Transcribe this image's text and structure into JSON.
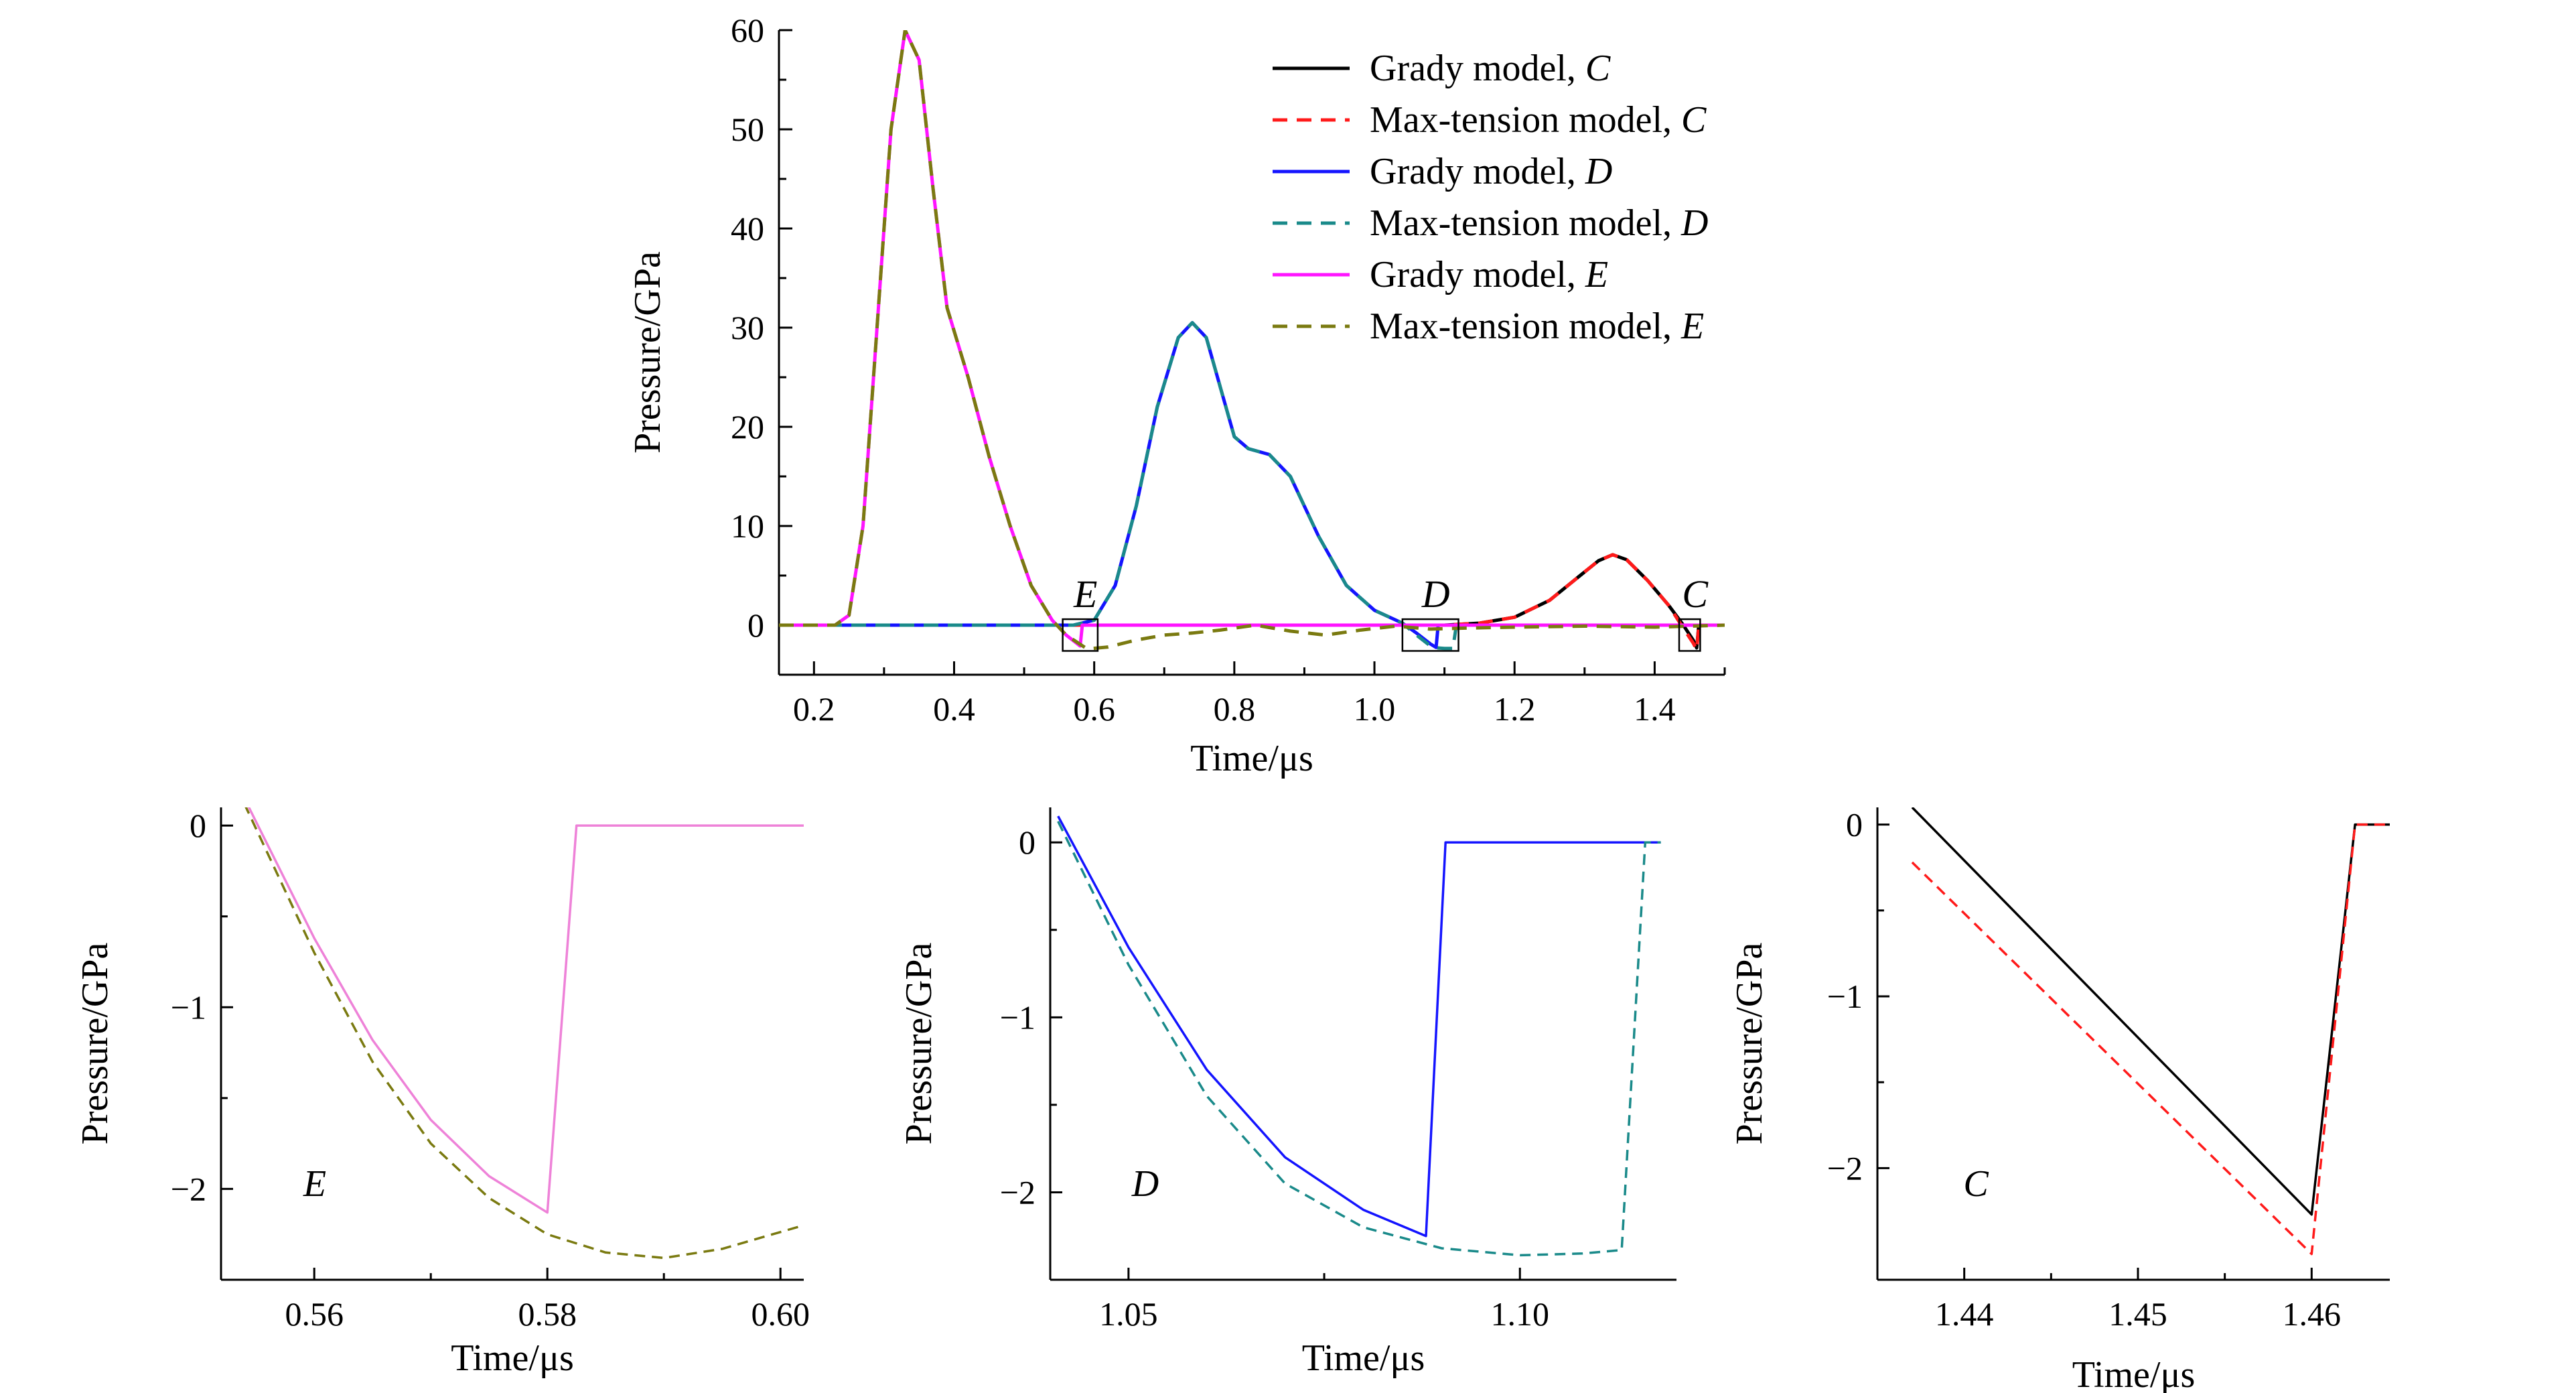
{
  "figure": {
    "panels": [
      "main",
      "inset-e",
      "inset-d",
      "inset-c"
    ]
  },
  "chart_data": [
    {
      "id": "main",
      "type": "line",
      "xlabel": "Time/μs",
      "ylabel": "Pressure/GPa",
      "xlim": [
        0.15,
        1.5
      ],
      "ylim": [
        -5,
        60
      ],
      "xticks": [
        0.2,
        0.4,
        0.6,
        0.8,
        1.0,
        1.2,
        1.4
      ],
      "xtick_labels": [
        "0.2",
        "0.4",
        "0.6",
        "0.8",
        "1.0",
        "1.2",
        "1.4"
      ],
      "yticks": [
        0,
        10,
        20,
        30,
        40,
        50,
        60
      ],
      "ytick_labels": [
        "0",
        "10",
        "20",
        "30",
        "40",
        "50",
        "60"
      ],
      "grid": false,
      "legend_position": "top-right",
      "series": [
        {
          "name": "Grady model, C",
          "color": "#000000",
          "dash": "solid",
          "x": [
            0.15,
            1.1,
            1.15,
            1.2,
            1.25,
            1.29,
            1.32,
            1.34,
            1.36,
            1.39,
            1.42,
            1.44,
            1.455,
            1.46,
            1.463,
            1.5
          ],
          "y": [
            0,
            0,
            0.2,
            0.8,
            2.5,
            4.8,
            6.5,
            7.1,
            6.6,
            4.5,
            2.0,
            0.1,
            -1.5,
            -2.3,
            0,
            0
          ]
        },
        {
          "name": "Max-tension model, C",
          "color": "#ff1a1a",
          "dash": "dashed",
          "x": [
            0.15,
            1.1,
            1.15,
            1.2,
            1.25,
            1.29,
            1.32,
            1.34,
            1.36,
            1.39,
            1.42,
            1.44,
            1.455,
            1.46,
            1.463,
            1.5
          ],
          "y": [
            0,
            0,
            0.2,
            0.8,
            2.5,
            4.8,
            6.5,
            7.1,
            6.6,
            4.5,
            2.0,
            -0.2,
            -1.8,
            -2.5,
            0,
            0
          ]
        },
        {
          "name": "Grady model, D",
          "color": "#1414ff",
          "dash": "solid",
          "x": [
            0.15,
            0.57,
            0.6,
            0.63,
            0.66,
            0.69,
            0.72,
            0.74,
            0.76,
            0.78,
            0.8,
            0.82,
            0.85,
            0.88,
            0.92,
            0.96,
            1.0,
            1.04,
            1.06,
            1.08,
            1.088,
            1.091,
            1.15,
            1.5
          ],
          "y": [
            0,
            0,
            0.5,
            4,
            12,
            22,
            29,
            30.5,
            29,
            24,
            19,
            17.8,
            17.2,
            15,
            9,
            4,
            1.5,
            0.2,
            -0.8,
            -1.9,
            -2.25,
            0,
            0,
            0
          ]
        },
        {
          "name": "Max-tension model, D",
          "color": "#1a8a8a",
          "dash": "dashed",
          "x": [
            0.15,
            0.57,
            0.6,
            0.63,
            0.66,
            0.69,
            0.72,
            0.74,
            0.76,
            0.78,
            0.8,
            0.82,
            0.85,
            0.88,
            0.92,
            0.96,
            1.0,
            1.04,
            1.06,
            1.08,
            1.09,
            1.1,
            1.112,
            1.117,
            1.15,
            1.5
          ],
          "y": [
            0,
            0,
            0.5,
            4,
            12,
            22,
            29,
            30.5,
            29,
            24,
            19,
            17.8,
            17.2,
            15,
            9,
            4,
            1.5,
            0.2,
            -1.0,
            -2.1,
            -2.3,
            -2.35,
            -2.35,
            0,
            0,
            0
          ]
        },
        {
          "name": "Grady model, E",
          "color": "#ff14ff",
          "dash": "solid",
          "x": [
            0.15,
            0.23,
            0.25,
            0.27,
            0.29,
            0.31,
            0.33,
            0.35,
            0.37,
            0.39,
            0.42,
            0.45,
            0.48,
            0.51,
            0.54,
            0.56,
            0.58,
            0.583,
            1.5
          ],
          "y": [
            0,
            0,
            1,
            10,
            30,
            50,
            60,
            57,
            44,
            32,
            25,
            17,
            10,
            4,
            0.5,
            -1,
            -2.1,
            0,
            0
          ]
        },
        {
          "name": "Max-tension model, E",
          "color": "#7a7a10",
          "dash": "dashed",
          "x": [
            0.15,
            0.23,
            0.25,
            0.27,
            0.29,
            0.31,
            0.33,
            0.35,
            0.37,
            0.39,
            0.42,
            0.45,
            0.48,
            0.51,
            0.54,
            0.56,
            0.59,
            0.62,
            0.66,
            0.7,
            0.74,
            0.78,
            0.83,
            0.88,
            0.93,
            0.98,
            1.03,
            1.08,
            1.13,
            1.2,
            1.3,
            1.4,
            1.5
          ],
          "y": [
            0,
            0,
            1,
            10,
            30,
            50,
            60,
            57,
            44,
            32,
            25,
            17,
            10,
            4,
            0.5,
            -1,
            -2.4,
            -2.2,
            -1.5,
            -1.0,
            -0.8,
            -0.5,
            0,
            -0.6,
            -1.0,
            -0.5,
            -0.1,
            -0.4,
            -0.3,
            -0.2,
            -0.1,
            -0.2,
            0
          ]
        }
      ],
      "annotations": [
        {
          "label": "E",
          "x_range": [
            0.555,
            0.605
          ],
          "y_range": [
            -2.6,
            0.6
          ]
        },
        {
          "label": "D",
          "x_range": [
            1.04,
            1.12
          ],
          "y_range": [
            -2.6,
            0.6
          ]
        },
        {
          "label": "C",
          "x_range": [
            1.435,
            1.465
          ],
          "y_range": [
            -2.6,
            0.6
          ]
        }
      ]
    },
    {
      "id": "inset-e",
      "type": "line",
      "title": "E",
      "xlabel": "Time/μs",
      "ylabel": "Pressure/GPa",
      "xlim": [
        0.552,
        0.602
      ],
      "ylim": [
        -2.5,
        0.1
      ],
      "xticks": [
        0.56,
        0.58,
        0.6
      ],
      "xtick_labels": [
        "0.56",
        "0.58",
        "0.60"
      ],
      "minor_xticks": [
        0.57,
        0.59
      ],
      "yticks": [
        0,
        -1,
        -2
      ],
      "ytick_labels": [
        "0",
        "−1",
        "−2"
      ],
      "minor_yticks": [
        -0.5,
        -1.5
      ],
      "series": [
        {
          "name": "Grady model, E",
          "color": "#ee82d8",
          "dash": "solid",
          "x": [
            0.554,
            0.56,
            0.565,
            0.57,
            0.575,
            0.58,
            0.5825,
            0.602
          ],
          "y": [
            0.15,
            -0.62,
            -1.18,
            -1.62,
            -1.93,
            -2.13,
            0,
            0
          ]
        },
        {
          "name": "Max-tension model, E",
          "color": "#7a7a10",
          "dash": "dashed",
          "x": [
            0.554,
            0.56,
            0.565,
            0.57,
            0.575,
            0.58,
            0.585,
            0.59,
            0.595,
            0.602
          ],
          "y": [
            0.12,
            -0.7,
            -1.3,
            -1.75,
            -2.05,
            -2.25,
            -2.35,
            -2.38,
            -2.33,
            -2.2
          ]
        }
      ]
    },
    {
      "id": "inset-d",
      "type": "line",
      "title": "D",
      "xlabel": "Time/μs",
      "ylabel": "Pressure/GPa",
      "xlim": [
        1.04,
        1.12
      ],
      "ylim": [
        -2.5,
        0.2
      ],
      "xticks": [
        1.05,
        1.1
      ],
      "xtick_labels": [
        "1.05",
        "1.10"
      ],
      "minor_xticks": [
        1.075
      ],
      "yticks": [
        0,
        -1,
        -2
      ],
      "ytick_labels": [
        "0",
        "−1",
        "−2"
      ],
      "minor_yticks": [
        -0.5,
        -1.5
      ],
      "series": [
        {
          "name": "Grady model, D",
          "color": "#1414ff",
          "dash": "solid",
          "x": [
            1.041,
            1.05,
            1.06,
            1.07,
            1.08,
            1.088,
            1.0905,
            1.118
          ],
          "y": [
            0.15,
            -0.6,
            -1.3,
            -1.8,
            -2.1,
            -2.25,
            0,
            0
          ]
        },
        {
          "name": "Max-tension model, D",
          "color": "#1a8a8a",
          "dash": "dashed",
          "x": [
            1.041,
            1.05,
            1.06,
            1.07,
            1.08,
            1.09,
            1.1,
            1.108,
            1.113,
            1.116,
            1.118
          ],
          "y": [
            0.12,
            -0.7,
            -1.45,
            -1.95,
            -2.2,
            -2.32,
            -2.36,
            -2.35,
            -2.33,
            0,
            0
          ]
        }
      ]
    },
    {
      "id": "inset-c",
      "type": "line",
      "title": "C",
      "xlabel": "Time/μs",
      "ylabel": "Pressure/GPa",
      "xlim": [
        1.435,
        1.4645
      ],
      "ylim": [
        -2.65,
        0.1
      ],
      "xticks": [
        1.44,
        1.45,
        1.46
      ],
      "xtick_labels": [
        "1.44",
        "1.45",
        "1.46"
      ],
      "minor_xticks": [
        1.445,
        1.455
      ],
      "yticks": [
        0,
        -1,
        -2
      ],
      "ytick_labels": [
        "0",
        "−1",
        "−2"
      ],
      "minor_yticks": [
        -0.5,
        -1.5
      ],
      "series": [
        {
          "name": "Grady model, C",
          "color": "#000000",
          "dash": "solid",
          "x": [
            1.437,
            1.46,
            1.4625,
            1.4645
          ],
          "y": [
            0.1,
            -2.27,
            0,
            0
          ]
        },
        {
          "name": "Max-tension model, C",
          "color": "#ff1a1a",
          "dash": "dashed",
          "x": [
            1.437,
            1.46,
            1.4625,
            1.4645
          ],
          "y": [
            -0.22,
            -2.5,
            0,
            0
          ]
        }
      ]
    }
  ]
}
